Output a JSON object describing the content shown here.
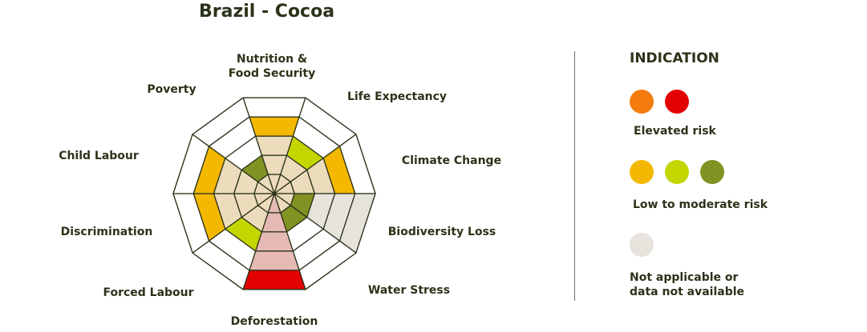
{
  "title": "Brazil - Cocoa",
  "chart_data": {
    "type": "radar",
    "title": "Brazil - Cocoa",
    "levels": 5,
    "axes": [
      {
        "label": "Nutrition &\nFood Security",
        "value": 4,
        "level_color": "#f5b800"
      },
      {
        "label": "Life Expectancy",
        "value": 3,
        "level_color": "#c4d600"
      },
      {
        "label": "Climate Change",
        "value": 4,
        "level_color": "#f5b800"
      },
      {
        "label": "Biodiversity Loss",
        "value": 2,
        "level_color": "#829223",
        "na_fill": true
      },
      {
        "label": "Water Stress",
        "value": 2,
        "level_color": "#829223"
      },
      {
        "label": "Deforestation",
        "value": 5,
        "level_color": "#e30000",
        "highlight": true
      },
      {
        "label": "Forced Labour",
        "value": 3,
        "level_color": "#c4d600"
      },
      {
        "label": "Discrimination",
        "value": 4,
        "level_color": "#f5b800"
      },
      {
        "label": "Child Labour",
        "value": 4,
        "level_color": "#f5b800"
      },
      {
        "label": "Poverty",
        "value": 2,
        "level_color": "#829223"
      }
    ],
    "colors": {
      "grid": "#2b3319",
      "neutral_fill": "#ecdcbb",
      "na_fill": "#e6e3dc",
      "highlight_fill": "#e5b9b6"
    }
  },
  "legend": {
    "title": "INDICATION",
    "groups": [
      {
        "label": "Elevated risk",
        "colors": [
          "#f47c0e",
          "#e30000"
        ]
      },
      {
        "label": "Low to moderate risk",
        "colors": [
          "#f5b800",
          "#c4d600",
          "#829223"
        ]
      },
      {
        "label": "Not applicable or\ndata not available",
        "colors": [
          "#e6e3dc"
        ]
      }
    ]
  }
}
